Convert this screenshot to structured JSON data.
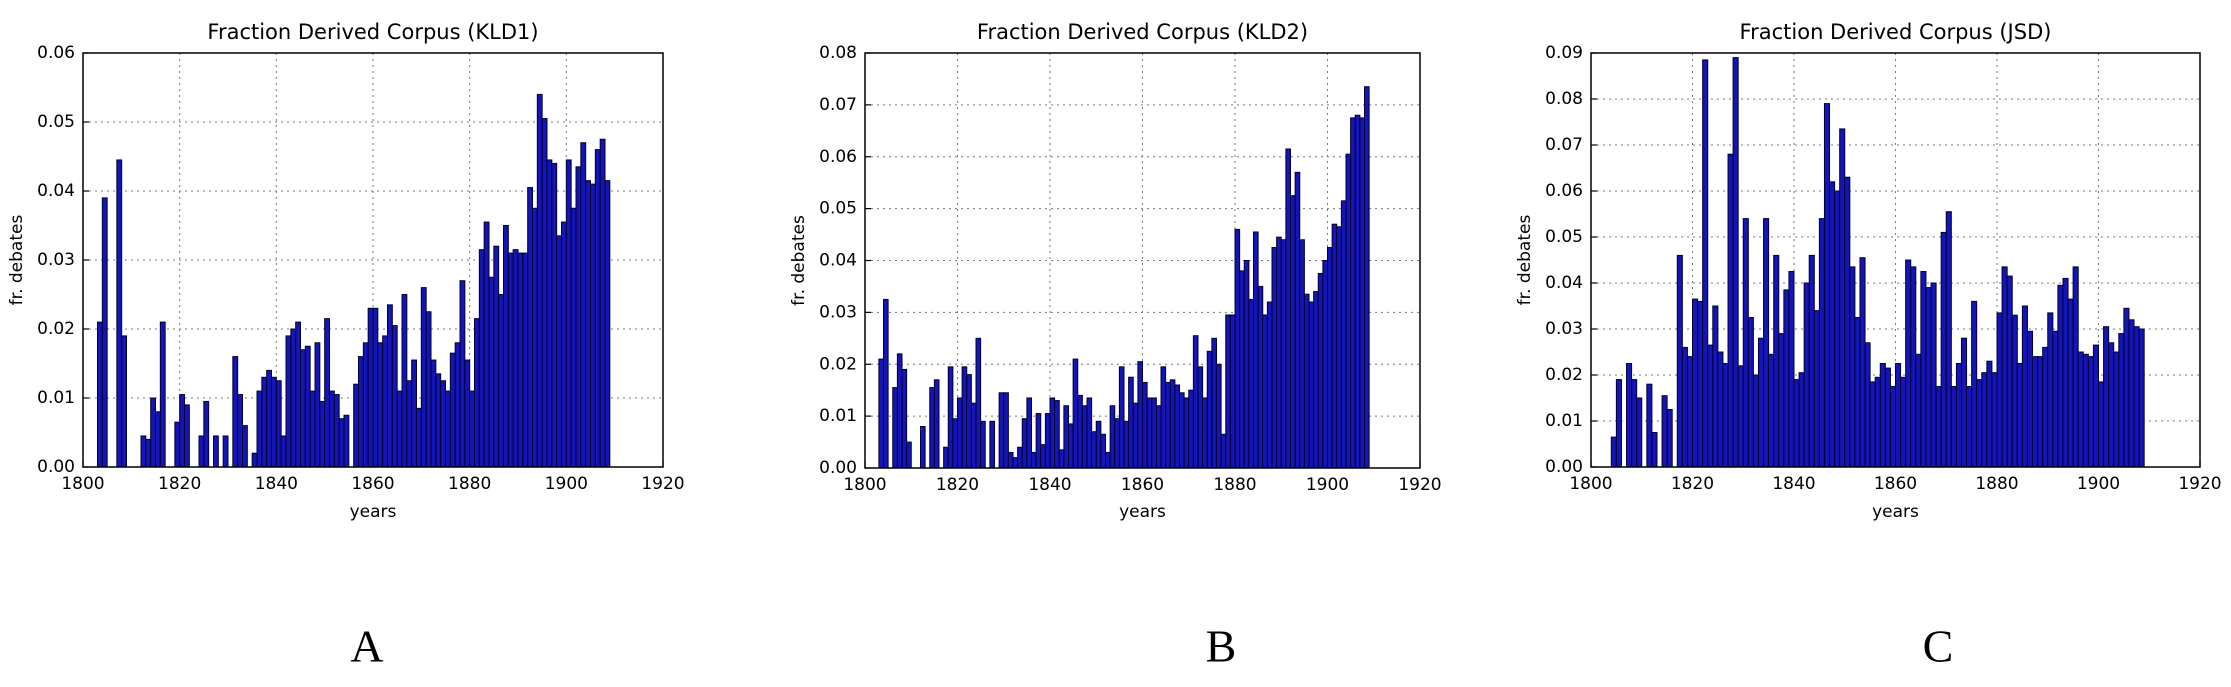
{
  "chart_data": [
    {
      "type": "bar",
      "title": "Fraction Derived Corpus (KLD1)",
      "xlabel": "years",
      "ylabel": "fr. debates",
      "panel_label": "A",
      "color": "#1515b5",
      "edgecolor": "#000033",
      "grid": true,
      "xlim": [
        1800,
        1920
      ],
      "xticks": [
        1800,
        1820,
        1840,
        1860,
        1880,
        1900,
        1920
      ],
      "ylim": [
        0,
        0.06
      ],
      "yticks": [
        {
          "value": 0,
          "label": "0.00"
        },
        {
          "value": 0.01,
          "label": "0.01"
        },
        {
          "value": 0.02,
          "label": "0.02"
        },
        {
          "value": 0.03,
          "label": "0.03"
        },
        {
          "value": 0.04,
          "label": "0.04"
        },
        {
          "value": 0.05,
          "label": "0.05"
        },
        {
          "value": 0.06,
          "label": "0.06"
        }
      ],
      "x": [
        1803,
        1804,
        1805,
        1806,
        1807,
        1808,
        1809,
        1810,
        1811,
        1812,
        1813,
        1814,
        1815,
        1816,
        1817,
        1818,
        1819,
        1820,
        1821,
        1822,
        1823,
        1824,
        1825,
        1826,
        1827,
        1828,
        1829,
        1830,
        1831,
        1832,
        1833,
        1834,
        1835,
        1836,
        1837,
        1838,
        1839,
        1840,
        1841,
        1842,
        1843,
        1844,
        1845,
        1846,
        1847,
        1848,
        1849,
        1850,
        1851,
        1852,
        1853,
        1854,
        1855,
        1856,
        1857,
        1858,
        1859,
        1860,
        1861,
        1862,
        1863,
        1864,
        1865,
        1866,
        1867,
        1868,
        1869,
        1870,
        1871,
        1872,
        1873,
        1874,
        1875,
        1876,
        1877,
        1878,
        1879,
        1880,
        1881,
        1882,
        1883,
        1884,
        1885,
        1886,
        1887,
        1888,
        1889,
        1890,
        1891,
        1892,
        1893,
        1894,
        1895,
        1896,
        1897,
        1898,
        1899,
        1900,
        1901,
        1902,
        1903,
        1904,
        1905,
        1906,
        1907,
        1908
      ],
      "values": [
        0.021,
        0.039,
        0,
        0,
        0.0445,
        0.019,
        0,
        0,
        0,
        0.0045,
        0.004,
        0.01,
        0.008,
        0.021,
        0,
        0,
        0.0065,
        0.0105,
        0.009,
        0,
        0,
        0.0045,
        0.0095,
        0,
        0.0045,
        0,
        0.0045,
        0,
        0.016,
        0.0105,
        0.006,
        0,
        0.002,
        0.011,
        0.013,
        0.014,
        0.013,
        0.0125,
        0.0045,
        0.019,
        0.02,
        0.021,
        0.017,
        0.0175,
        0.011,
        0.018,
        0.0095,
        0.0215,
        0.011,
        0.0105,
        0.007,
        0.0075,
        0,
        0.012,
        0.016,
        0.018,
        0.023,
        0.023,
        0.018,
        0.019,
        0.0235,
        0.0205,
        0.011,
        0.025,
        0.0125,
        0.0155,
        0.0085,
        0.026,
        0.0225,
        0.0155,
        0.0135,
        0.0125,
        0.011,
        0.0165,
        0.018,
        0.027,
        0.0155,
        0.011,
        0.0215,
        0.0315,
        0.0355,
        0.0275,
        0.032,
        0.025,
        0.035,
        0.031,
        0.0315,
        0.031,
        0.031,
        0.0405,
        0.0375,
        0.054,
        0.0505,
        0.0445,
        0.044,
        0.0335,
        0.0355,
        0.0445,
        0.0375,
        0.0435,
        0.047,
        0.0415,
        0.041,
        0.046,
        0.0475,
        0.0415
      ]
    },
    {
      "type": "bar",
      "title": "Fraction Derived Corpus (KLD2)",
      "xlabel": "years",
      "ylabel": "fr. debates",
      "panel_label": "B",
      "color": "#1515b5",
      "edgecolor": "#000033",
      "grid": true,
      "xlim": [
        1800,
        1920
      ],
      "xticks": [
        1800,
        1820,
        1840,
        1860,
        1880,
        1900,
        1920
      ],
      "ylim": [
        0,
        0.08
      ],
      "yticks": [
        {
          "value": 0,
          "label": "0.00"
        },
        {
          "value": 0.01,
          "label": "0.01"
        },
        {
          "value": 0.02,
          "label": "0.02"
        },
        {
          "value": 0.03,
          "label": "0.03"
        },
        {
          "value": 0.04,
          "label": "0.04"
        },
        {
          "value": 0.05,
          "label": "0.05"
        },
        {
          "value": 0.06,
          "label": "0.06"
        },
        {
          "value": 0.07,
          "label": "0.07"
        },
        {
          "value": 0.08,
          "label": "0.08"
        }
      ],
      "x": [
        1803,
        1804,
        1805,
        1806,
        1807,
        1808,
        1809,
        1810,
        1811,
        1812,
        1813,
        1814,
        1815,
        1816,
        1817,
        1818,
        1819,
        1820,
        1821,
        1822,
        1823,
        1824,
        1825,
        1826,
        1827,
        1828,
        1829,
        1830,
        1831,
        1832,
        1833,
        1834,
        1835,
        1836,
        1837,
        1838,
        1839,
        1840,
        1841,
        1842,
        1843,
        1844,
        1845,
        1846,
        1847,
        1848,
        1849,
        1850,
        1851,
        1852,
        1853,
        1854,
        1855,
        1856,
        1857,
        1858,
        1859,
        1860,
        1861,
        1862,
        1863,
        1864,
        1865,
        1866,
        1867,
        1868,
        1869,
        1870,
        1871,
        1872,
        1873,
        1874,
        1875,
        1876,
        1877,
        1878,
        1879,
        1880,
        1881,
        1882,
        1883,
        1884,
        1885,
        1886,
        1887,
        1888,
        1889,
        1890,
        1891,
        1892,
        1893,
        1894,
        1895,
        1896,
        1897,
        1898,
        1899,
        1900,
        1901,
        1902,
        1903,
        1904,
        1905,
        1906,
        1907,
        1908
      ],
      "values": [
        0.021,
        0.0325,
        0,
        0.0155,
        0.022,
        0.019,
        0.005,
        0,
        0,
        0.008,
        0,
        0.0155,
        0.017,
        0,
        0.004,
        0.0195,
        0.0095,
        0.0135,
        0.0195,
        0.018,
        0.0125,
        0.025,
        0.009,
        0,
        0.009,
        0,
        0.0145,
        0.0145,
        0.003,
        0.002,
        0.004,
        0.0095,
        0.0135,
        0.003,
        0.0105,
        0.0045,
        0.0105,
        0.0135,
        0.013,
        0.0035,
        0.012,
        0.0085,
        0.021,
        0.014,
        0.012,
        0.0135,
        0.007,
        0.009,
        0.0065,
        0.003,
        0.012,
        0.0095,
        0.0195,
        0.009,
        0.0175,
        0.0125,
        0.0205,
        0.0165,
        0.0135,
        0.0135,
        0.012,
        0.0195,
        0.0165,
        0.017,
        0.016,
        0.0145,
        0.0135,
        0.015,
        0.0255,
        0.0195,
        0.0135,
        0.0225,
        0.025,
        0.02,
        0.0065,
        0.0295,
        0.0295,
        0.046,
        0.038,
        0.04,
        0.0325,
        0.0455,
        0.035,
        0.0295,
        0.032,
        0.0425,
        0.0445,
        0.044,
        0.0615,
        0.0525,
        0.057,
        0.044,
        0.0335,
        0.032,
        0.034,
        0.0375,
        0.04,
        0.0425,
        0.047,
        0.0465,
        0.0515,
        0.0605,
        0.0675,
        0.068,
        0.0675,
        0.0735
      ]
    },
    {
      "type": "bar",
      "title": "Fraction Derived Corpus (JSD)",
      "xlabel": "years",
      "ylabel": "fr. debates",
      "panel_label": "C",
      "color": "#1515b5",
      "edgecolor": "#000033",
      "grid": true,
      "xlim": [
        1800,
        1920
      ],
      "xticks": [
        1800,
        1820,
        1840,
        1860,
        1880,
        1900,
        1920
      ],
      "ylim": [
        0,
        0.09
      ],
      "yticks": [
        {
          "value": 0,
          "label": "0.00"
        },
        {
          "value": 0.01,
          "label": "0.01"
        },
        {
          "value": 0.02,
          "label": "0.02"
        },
        {
          "value": 0.03,
          "label": "0.03"
        },
        {
          "value": 0.04,
          "label": "0.04"
        },
        {
          "value": 0.05,
          "label": "0.05"
        },
        {
          "value": 0.06,
          "label": "0.06"
        },
        {
          "value": 0.07,
          "label": "0.07"
        },
        {
          "value": 0.08,
          "label": "0.08"
        },
        {
          "value": 0.09,
          "label": "0.09"
        }
      ],
      "x": [
        1803,
        1804,
        1805,
        1806,
        1807,
        1808,
        1809,
        1810,
        1811,
        1812,
        1813,
        1814,
        1815,
        1816,
        1817,
        1818,
        1819,
        1820,
        1821,
        1822,
        1823,
        1824,
        1825,
        1826,
        1827,
        1828,
        1829,
        1830,
        1831,
        1832,
        1833,
        1834,
        1835,
        1836,
        1837,
        1838,
        1839,
        1840,
        1841,
        1842,
        1843,
        1844,
        1845,
        1846,
        1847,
        1848,
        1849,
        1850,
        1851,
        1852,
        1853,
        1854,
        1855,
        1856,
        1857,
        1858,
        1859,
        1860,
        1861,
        1862,
        1863,
        1864,
        1865,
        1866,
        1867,
        1868,
        1869,
        1870,
        1871,
        1872,
        1873,
        1874,
        1875,
        1876,
        1877,
        1878,
        1879,
        1880,
        1881,
        1882,
        1883,
        1884,
        1885,
        1886,
        1887,
        1888,
        1889,
        1890,
        1891,
        1892,
        1893,
        1894,
        1895,
        1896,
        1897,
        1898,
        1899,
        1900,
        1901,
        1902,
        1903,
        1904,
        1905,
        1906,
        1907,
        1908
      ],
      "values": [
        0,
        0.0065,
        0.019,
        0,
        0.0225,
        0.019,
        0.015,
        0,
        0.018,
        0.0075,
        0,
        0.0155,
        0.0125,
        0,
        0.046,
        0.026,
        0.024,
        0.0365,
        0.036,
        0.0885,
        0.0265,
        0.035,
        0.025,
        0.0225,
        0.068,
        0.089,
        0.022,
        0.054,
        0.0325,
        0.02,
        0.028,
        0.054,
        0.0245,
        0.046,
        0.029,
        0.0385,
        0.0425,
        0.019,
        0.0205,
        0.04,
        0.046,
        0.034,
        0.054,
        0.079,
        0.062,
        0.06,
        0.0735,
        0.063,
        0.0435,
        0.0325,
        0.0455,
        0.027,
        0.0185,
        0.0195,
        0.0225,
        0.0215,
        0.0175,
        0.0225,
        0.0195,
        0.045,
        0.0435,
        0.0245,
        0.0425,
        0.039,
        0.04,
        0.0175,
        0.051,
        0.0555,
        0.0175,
        0.0225,
        0.028,
        0.0175,
        0.036,
        0.019,
        0.0205,
        0.023,
        0.0205,
        0.0335,
        0.0435,
        0.0415,
        0.033,
        0.0225,
        0.035,
        0.0295,
        0.024,
        0.024,
        0.026,
        0.0335,
        0.0295,
        0.0395,
        0.041,
        0.0365,
        0.0435,
        0.025,
        0.0245,
        0.024,
        0.0265,
        0.0185,
        0.0305,
        0.027,
        0.025,
        0.029,
        0.0345,
        0.032,
        0.0305,
        0.03
      ]
    }
  ]
}
